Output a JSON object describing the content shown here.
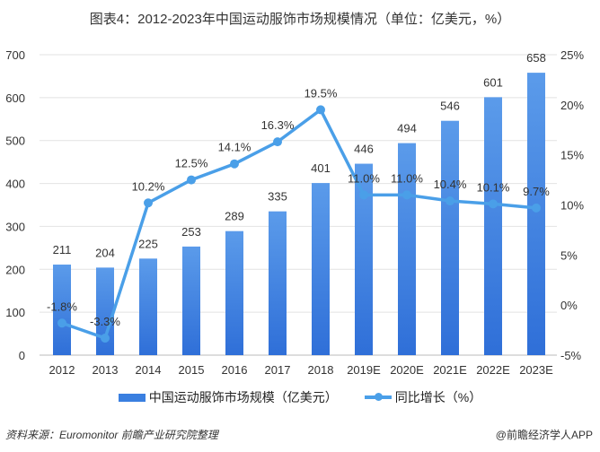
{
  "chart_data": {
    "type": "bar+line",
    "title": "图表4：2012-2023年中国运动服饰市场规模情况（单位：亿美元，%）",
    "categories": [
      "2012",
      "2013",
      "2014",
      "2015",
      "2016",
      "2017",
      "2018",
      "2019E",
      "2020E",
      "2021E",
      "2022E",
      "2023E"
    ],
    "series": [
      {
        "name": "中国运动服饰市场规模（亿美元）",
        "type": "bar",
        "axis": "left",
        "color": "#3a7fe0",
        "values": [
          211,
          204,
          225,
          253,
          289,
          335,
          401,
          446,
          494,
          546,
          601,
          658
        ]
      },
      {
        "name": "同比增长（%）",
        "type": "line",
        "axis": "right",
        "color": "#4a9fe8",
        "values": [
          -1.8,
          -3.3,
          10.2,
          12.5,
          14.1,
          16.3,
          19.5,
          11.0,
          11.0,
          10.4,
          10.1,
          9.7
        ],
        "labels": [
          "-1.8%",
          "-3.3%",
          "10.2%",
          "12.5%",
          "14.1%",
          "16.3%",
          "19.5%",
          "11.0%",
          "11.0%",
          "10.4%",
          "10.1%",
          "9.7%"
        ]
      }
    ],
    "ylim": [
      0,
      700
    ],
    "yticks": [
      "0",
      "100",
      "200",
      "300",
      "400",
      "500",
      "600",
      "700"
    ],
    "y2lim": [
      -5,
      25
    ],
    "y2ticks": [
      "-5%",
      "0%",
      "5%",
      "10%",
      "15%",
      "20%",
      "25%"
    ],
    "grid": true,
    "legend": "bottom"
  },
  "source": "资料来源：Euromonitor 前瞻产业研究院整理",
  "brand": "@前瞻经济学人APP"
}
